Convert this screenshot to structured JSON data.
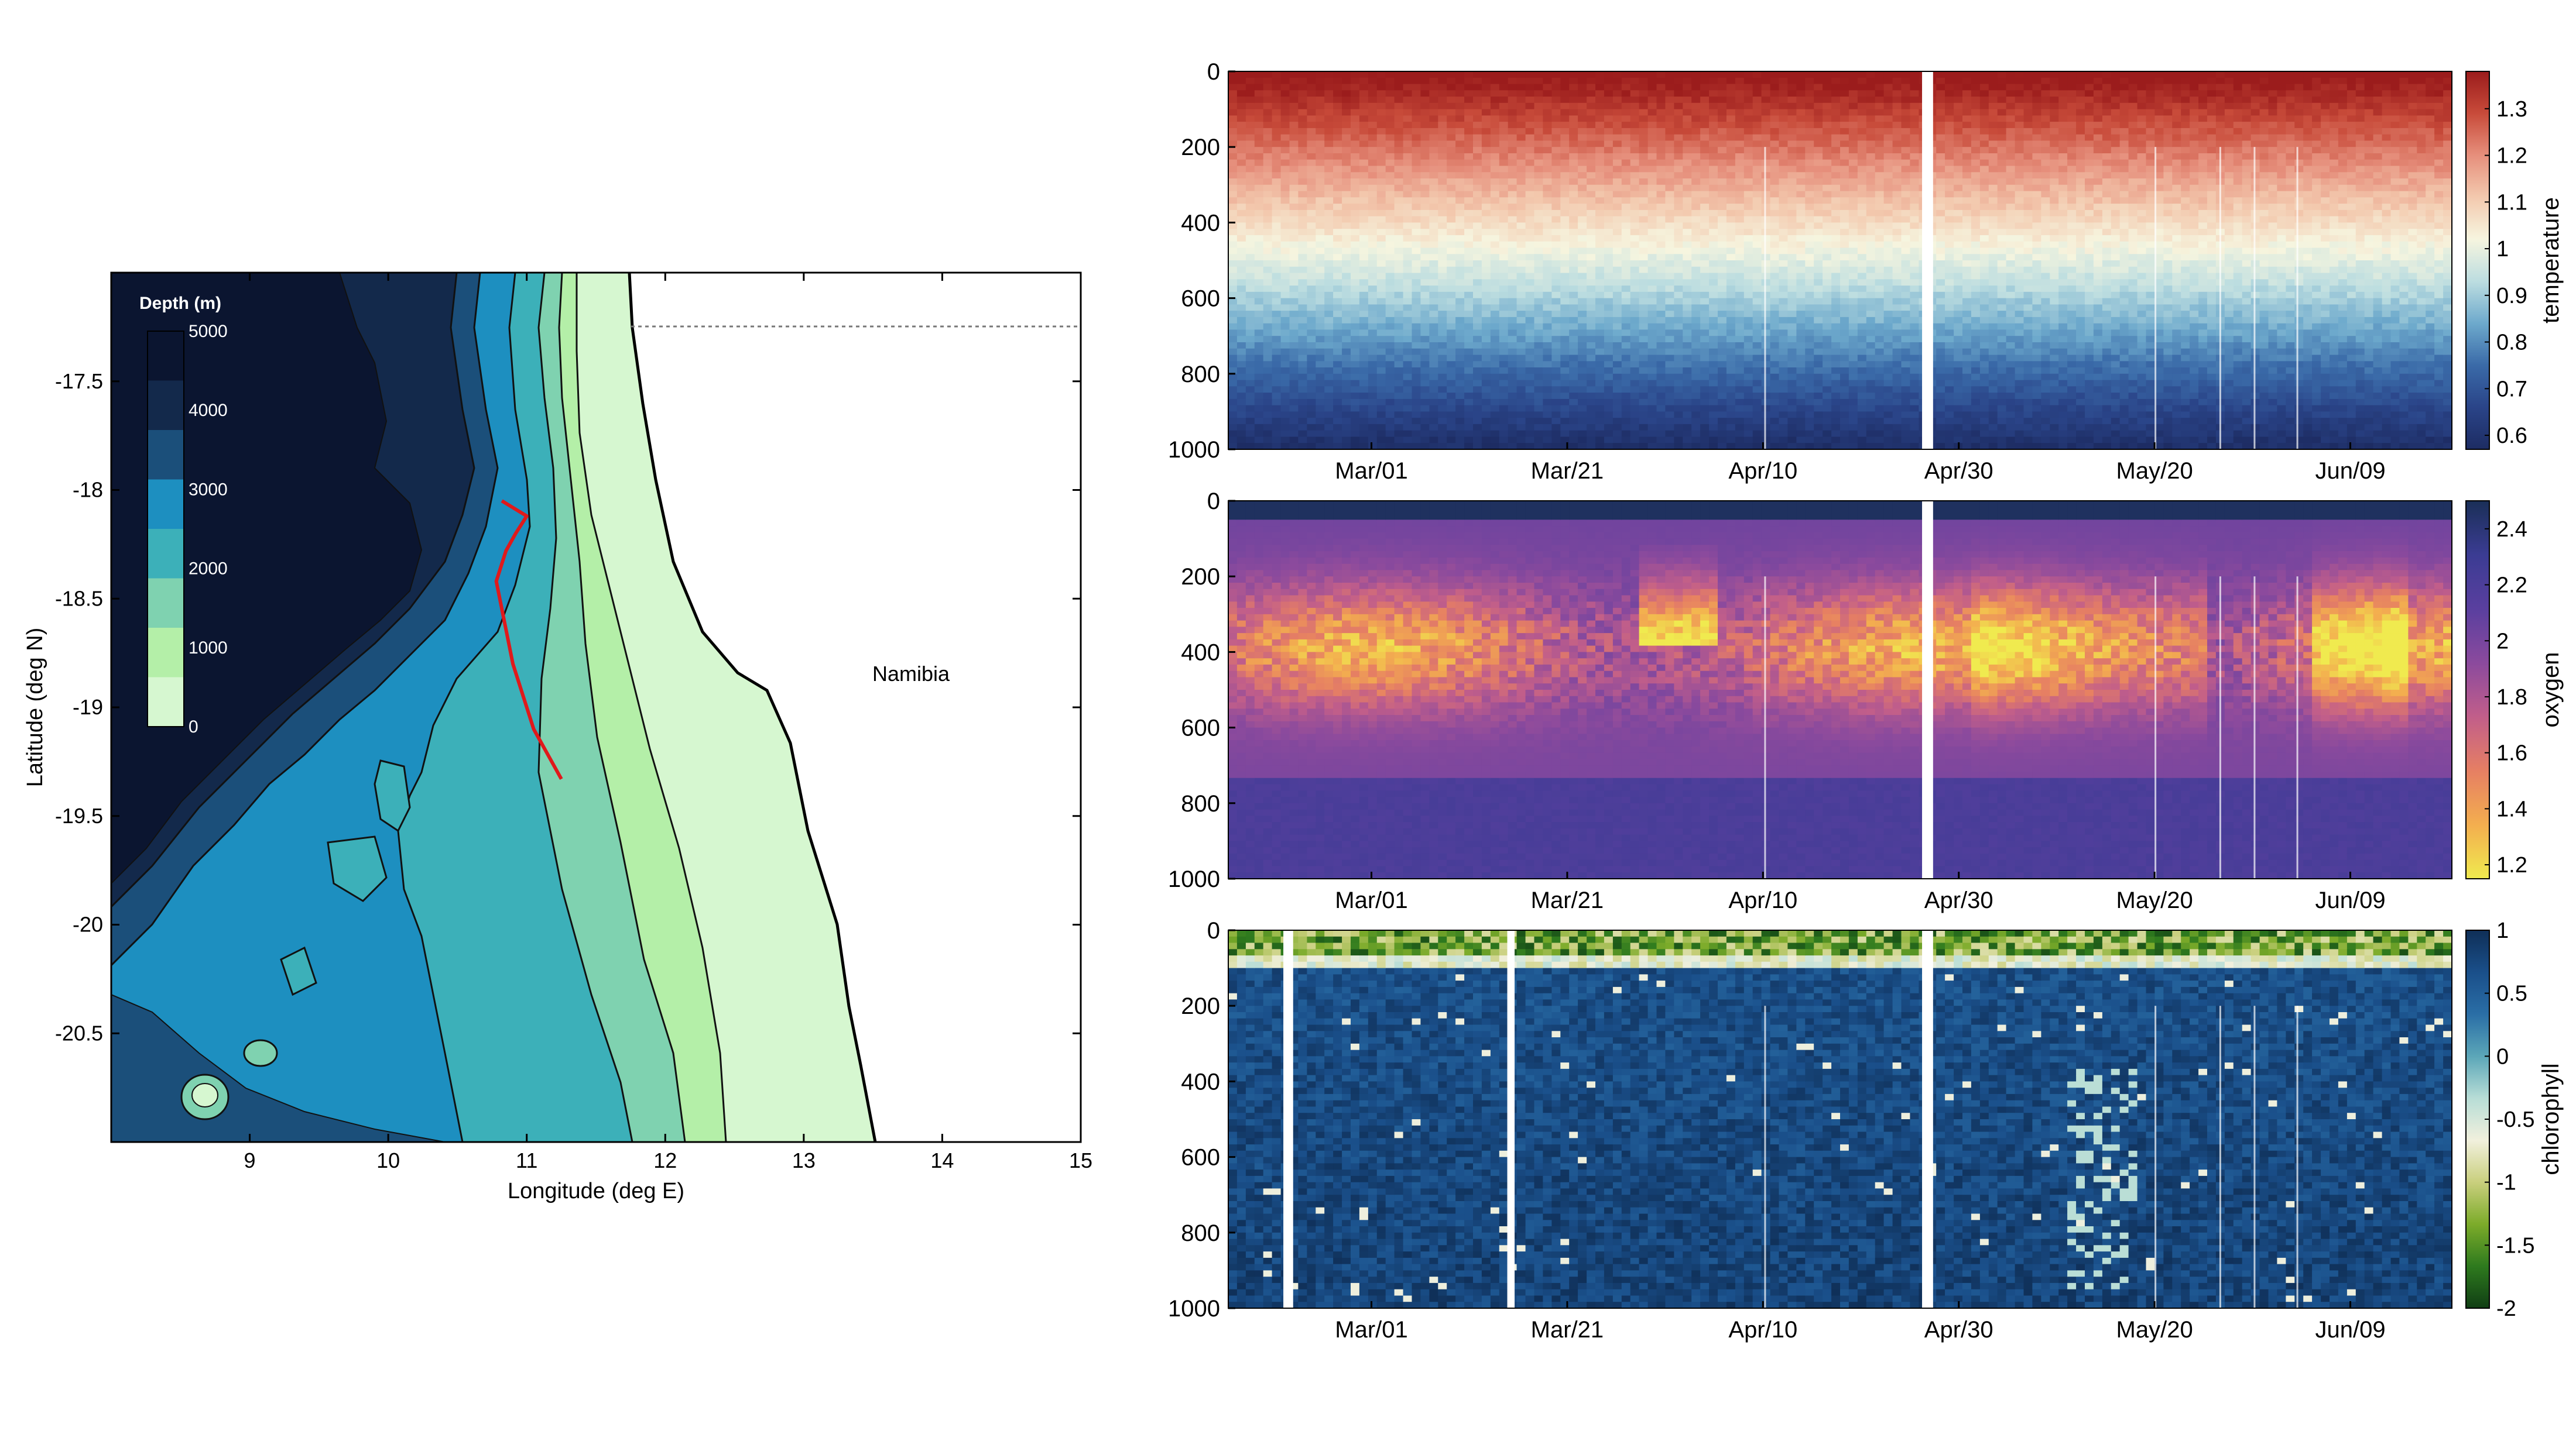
{
  "chart_data": [
    {
      "type": "heatmap",
      "id": "map",
      "xlabel": "Longitude (deg E)",
      "ylabel": "Latitude (deg N)",
      "xlim": [
        8,
        15
      ],
      "ylim": [
        -21,
        -17
      ],
      "xticks": [
        "9",
        "10",
        "11",
        "12",
        "13",
        "14",
        "15"
      ],
      "yticks": [
        "-17.5",
        "-18",
        "-18.5",
        "-19",
        "-19.5",
        "-20",
        "-20.5"
      ],
      "annotation": "Namibia",
      "colorbar_title": "Depth (m)",
      "colorbar_ticks": [
        "5000",
        "4000",
        "3000",
        "2000",
        "1000",
        "0"
      ],
      "depth_colors": [
        "#0b1530",
        "#13294b",
        "#1b4f7a",
        "#1d8fc0",
        "#3cb0b9",
        "#7fd2b0",
        "#b4efa8",
        "#d6f7d0"
      ],
      "track_color": "#e0191b",
      "track": [
        [
          10.82,
          -18.05
        ],
        [
          11.0,
          -18.12
        ],
        [
          10.92,
          -18.2
        ],
        [
          10.85,
          -18.28
        ],
        [
          10.78,
          -18.42
        ],
        [
          10.9,
          -18.8
        ],
        [
          11.05,
          -19.1
        ],
        [
          11.25,
          -19.33
        ]
      ]
    },
    {
      "type": "heatmap",
      "id": "temperature",
      "ylabel": "",
      "colorbar_label": "temperature",
      "yticks": [
        "0",
        "200",
        "400",
        "600",
        "800",
        "1000"
      ],
      "xticks": [
        "Mar/01",
        "Mar/21",
        "Apr/10",
        "Apr/30",
        "May/20",
        "Jun/09"
      ],
      "colorbar_ticks": [
        "1.3",
        "1.2",
        "1.1",
        "1",
        "0.9",
        "0.8",
        "0.7",
        "0.6"
      ],
      "colorbar_range": [
        0.57,
        1.38
      ],
      "colormap": [
        "#9b1c1c",
        "#c84b3a",
        "#e68f7c",
        "#f3c9ae",
        "#f6f5df",
        "#bcdde0",
        "#6da9cc",
        "#3a6aa8",
        "#2a4488",
        "#1d2c63"
      ]
    },
    {
      "type": "heatmap",
      "id": "oxygen",
      "colorbar_label": "oxygen",
      "yticks": [
        "0",
        "200",
        "400",
        "600",
        "800",
        "1000"
      ],
      "xticks": [
        "Mar/01",
        "Mar/21",
        "Apr/10",
        "Apr/30",
        "May/20",
        "Jun/09"
      ],
      "colorbar_ticks": [
        "2.4",
        "2.2",
        "2",
        "1.8",
        "1.6",
        "1.4",
        "1.2"
      ],
      "colorbar_range": [
        1.15,
        2.5
      ],
      "colormap": [
        "#1a2f57",
        "#3b3c93",
        "#5a3f9f",
        "#8b4a9d",
        "#c15e8a",
        "#e67f63",
        "#f3ae4f",
        "#f0ea4f"
      ]
    },
    {
      "type": "heatmap",
      "id": "chlorophyll",
      "colorbar_label": "chlorophyll",
      "yticks": [
        "0",
        "200",
        "400",
        "600",
        "800",
        "1000"
      ],
      "xticks": [
        "Mar/01",
        "Mar/21",
        "Apr/10",
        "Apr/30",
        "May/20",
        "Jun/09"
      ],
      "colorbar_ticks": [
        "1",
        "0.5",
        "0",
        "-0.5",
        "-1",
        "-1.5",
        "-2"
      ],
      "colorbar_range": [
        -2,
        1
      ],
      "colormap": [
        "#0f2f57",
        "#1a4f8a",
        "#2a6ea6",
        "#5ba6b8",
        "#b7ddd6",
        "#f1f0dd",
        "#c9cf7d",
        "#7cab2a",
        "#2e7a1e",
        "#103e14"
      ]
    }
  ]
}
